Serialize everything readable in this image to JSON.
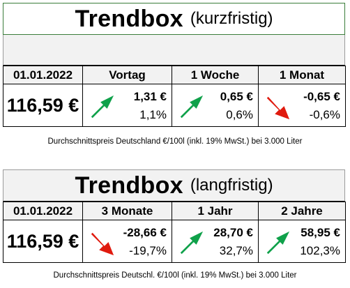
{
  "short_term": {
    "title_main": "Trendbox",
    "title_sub": "(kurzfristig)",
    "date": "01.01.2022",
    "price": "116,59 €",
    "columns": [
      {
        "label": "Vortag",
        "amount": "1,31 €",
        "pct": "1,1%",
        "direction": "up",
        "icon": "up-arrow-icon",
        "color": "#0fa14a"
      },
      {
        "label": "1 Woche",
        "amount": "0,65 €",
        "pct": "0,6%",
        "direction": "up",
        "icon": "up-arrow-icon",
        "color": "#0fa14a"
      },
      {
        "label": "1 Monat",
        "amount": "-0,65 €",
        "pct": "-0,6%",
        "direction": "down",
        "icon": "down-arrow-icon",
        "color": "#e01a0e"
      }
    ],
    "note": "Durchschnittspreis Deutschland €/100l (inkl. 19% MwSt.) bei 3.000 Liter"
  },
  "long_term": {
    "title_main": "Trendbox",
    "title_sub": "(langfristig)",
    "date": "01.01.2022",
    "price": "116,59 €",
    "columns": [
      {
        "label": "3 Monate",
        "amount": "-28,66 €",
        "pct": "-19,7%",
        "direction": "down",
        "icon": "down-arrow-icon",
        "color": "#e01a0e"
      },
      {
        "label": "1 Jahr",
        "amount": "28,70 €",
        "pct": "32,7%",
        "direction": "up",
        "icon": "up-arrow-icon",
        "color": "#0fa14a"
      },
      {
        "label": "2 Jahre",
        "amount": "58,95 €",
        "pct": "102,3%",
        "direction": "up",
        "icon": "up-arrow-icon",
        "color": "#0fa14a"
      }
    ],
    "note": "Durchschnittspreis Deutschl. €/100l (inkl. 19% MwSt.) bei 3.000 Liter"
  }
}
